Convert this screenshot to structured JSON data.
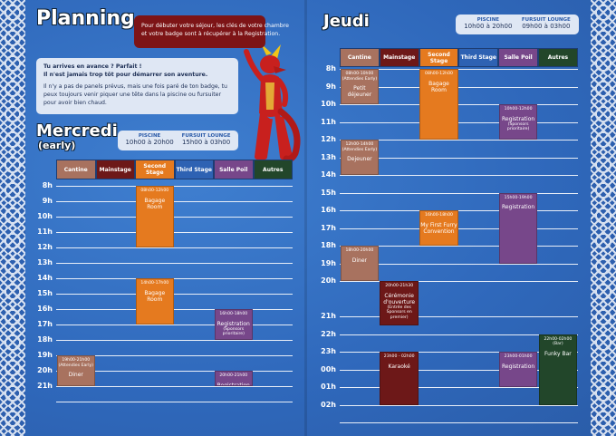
{
  "header": {
    "title": "Planning"
  },
  "bubble": {
    "lines": [
      "Pour débuter votre séjour, les clés de votre chambre",
      "et votre badge sont à récupérer à la Registration."
    ]
  },
  "intro": {
    "lines": [
      "Tu arrives en avance ? Parfait !",
      "Il n'est jamais trop tôt pour démarrer son aventure.",
      "Il n'y a pas de panels prévus, mais une fois paré de ton badge, tu",
      "peux toujours venir piquer une tête dans la piscine ou fursuiter",
      "pour avoir bien chaud."
    ]
  },
  "days": [
    {
      "title": "Mercredi",
      "subtitle": "(early)",
      "hours": [
        {
          "label": "PISCINE",
          "time": "10h00 à 20h00"
        },
        {
          "label": "FURSUIT LOUNGE",
          "time": "15h00 à 03h00"
        }
      ],
      "columns": [
        "Cantine",
        "Mainstage",
        "Second Stage",
        "Third Stage",
        "Salle Poil",
        "Autres"
      ],
      "rows": [
        "8h",
        "9h",
        "10h",
        "11h",
        "12h",
        "13h",
        "14h",
        "15h",
        "16h",
        "17h",
        "18h",
        "19h",
        "20h",
        "21h"
      ],
      "events": [
        {
          "time": "08h00-12h00",
          "title": "Bagage Room"
        },
        {
          "time": "14h00-17h00",
          "title": "Bagage Room"
        },
        {
          "time": "16h00-18h00",
          "title": "Registration",
          "post": "(Sponsors prioritaire)"
        },
        {
          "time": "20h00-21h00",
          "title": "Registration"
        },
        {
          "time": "19h00-21h00",
          "pre": "(Attendies Early)",
          "title": "Diner"
        }
      ]
    },
    {
      "title": "Jeudi",
      "hours": [
        {
          "label": "PISCINE",
          "time": "10h00 à 20h00"
        },
        {
          "label": "FURSUIT LOUNGE",
          "time": "09h00 à 03h00"
        }
      ],
      "columns": [
        "Cantine",
        "Mainstage",
        "Second Stage",
        "Third Stage",
        "Salle Poil",
        "Autres"
      ],
      "rows": [
        "8h",
        "9h",
        "10h",
        "11h",
        "12h",
        "13h",
        "14h",
        "15h",
        "16h",
        "17h",
        "18h",
        "19h",
        "20h",
        "21h",
        "22h",
        "23h",
        "00h",
        "01h",
        "02h"
      ],
      "events": [
        {
          "time": "08h00-10h00",
          "pre": "(Attendies Early)",
          "title": "Petit déjeuner"
        },
        {
          "time": "08h00-12h00",
          "title": "Bagage Room"
        },
        {
          "time": "10h00-12h00",
          "title": "Registration",
          "post": "(Sponsors prioritaire)"
        },
        {
          "time": "12h00-14h00",
          "pre": "(Attendies Early)",
          "title": "Dejeuner"
        },
        {
          "time": "16h00-18h00",
          "title": "My First Furry Convention"
        },
        {
          "time": "15h00-19h00",
          "title": "Registration"
        },
        {
          "time": "18h00-20h00",
          "title": "Diner"
        },
        {
          "time": "20h00-21h30",
          "title": "Cérémonie d'ouverture",
          "post": "(Entrée des Sponsors en premier)"
        },
        {
          "time": "23h00 - 02h00",
          "title": "Karaoké"
        },
        {
          "time": "23h00-01h00",
          "title": "Registration"
        },
        {
          "time": "22h00-02h00",
          "pre": "(Bar)",
          "title": "Funky Bar"
        }
      ]
    }
  ]
}
